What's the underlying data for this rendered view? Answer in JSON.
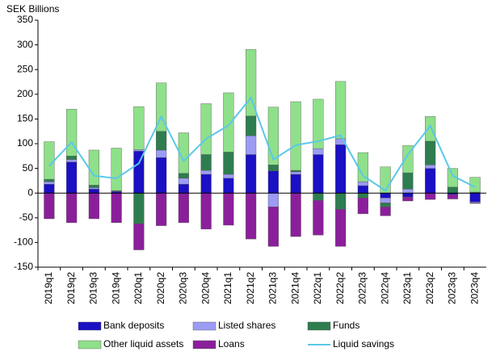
{
  "chart_data": {
    "type": "bar",
    "stacked": true,
    "y_label": "SEK Billions",
    "categories": [
      "2019q1",
      "2019q2",
      "2019q3",
      "2019q4",
      "2020q1",
      "2020q2",
      "2020q3",
      "2020q4",
      "2021q1",
      "2021q2",
      "2021q3",
      "2021q4",
      "2022q1",
      "2022q2",
      "2022q3",
      "2022q4",
      "2023q1",
      "2023q2",
      "2023q3",
      "2023q4"
    ],
    "series": [
      {
        "name": "Bank deposits",
        "color": "#1a10c4",
        "values": [
          18,
          63,
          8,
          3,
          85,
          72,
          18,
          38,
          30,
          78,
          45,
          38,
          78,
          98,
          15,
          -10,
          -8,
          50,
          -3,
          -18
        ]
      },
      {
        "name": "Listed shares",
        "color": "#9c9cf4",
        "values": [
          5,
          5,
          3,
          1,
          3,
          15,
          12,
          8,
          8,
          38,
          -28,
          5,
          12,
          12,
          8,
          -10,
          8,
          7,
          0,
          -2
        ]
      },
      {
        "name": "Funds",
        "color": "#2e7d4f",
        "values": [
          5,
          7,
          5,
          1,
          -62,
          38,
          10,
          32,
          45,
          40,
          12,
          3,
          -15,
          -33,
          -10,
          -8,
          33,
          48,
          12,
          2
        ]
      },
      {
        "name": "Other liquid assets",
        "color": "#8fe08a",
        "values": [
          76,
          95,
          71,
          86,
          87,
          98,
          82,
          103,
          120,
          135,
          117,
          139,
          100,
          116,
          59,
          53,
          55,
          50,
          38,
          30
        ]
      },
      {
        "name": "Loans",
        "color": "#8b1f9b",
        "values": [
          -52,
          -60,
          -52,
          -60,
          -53,
          -66,
          -60,
          -73,
          -65,
          -93,
          -80,
          -88,
          -70,
          -75,
          -32,
          -18,
          -8,
          -13,
          -9,
          -1
        ]
      },
      {
        "name": "Liquid savings",
        "type": "line",
        "color": "#5bc8e8",
        "values": [
          55,
          103,
          35,
          30,
          60,
          155,
          65,
          110,
          137,
          193,
          68,
          97,
          105,
          117,
          35,
          5,
          78,
          136,
          35,
          12
        ]
      }
    ],
    "ylim": [
      -150,
      350
    ],
    "yticks": [
      -150,
      -100,
      -50,
      0,
      50,
      100,
      150,
      200,
      250,
      300,
      350
    ]
  }
}
